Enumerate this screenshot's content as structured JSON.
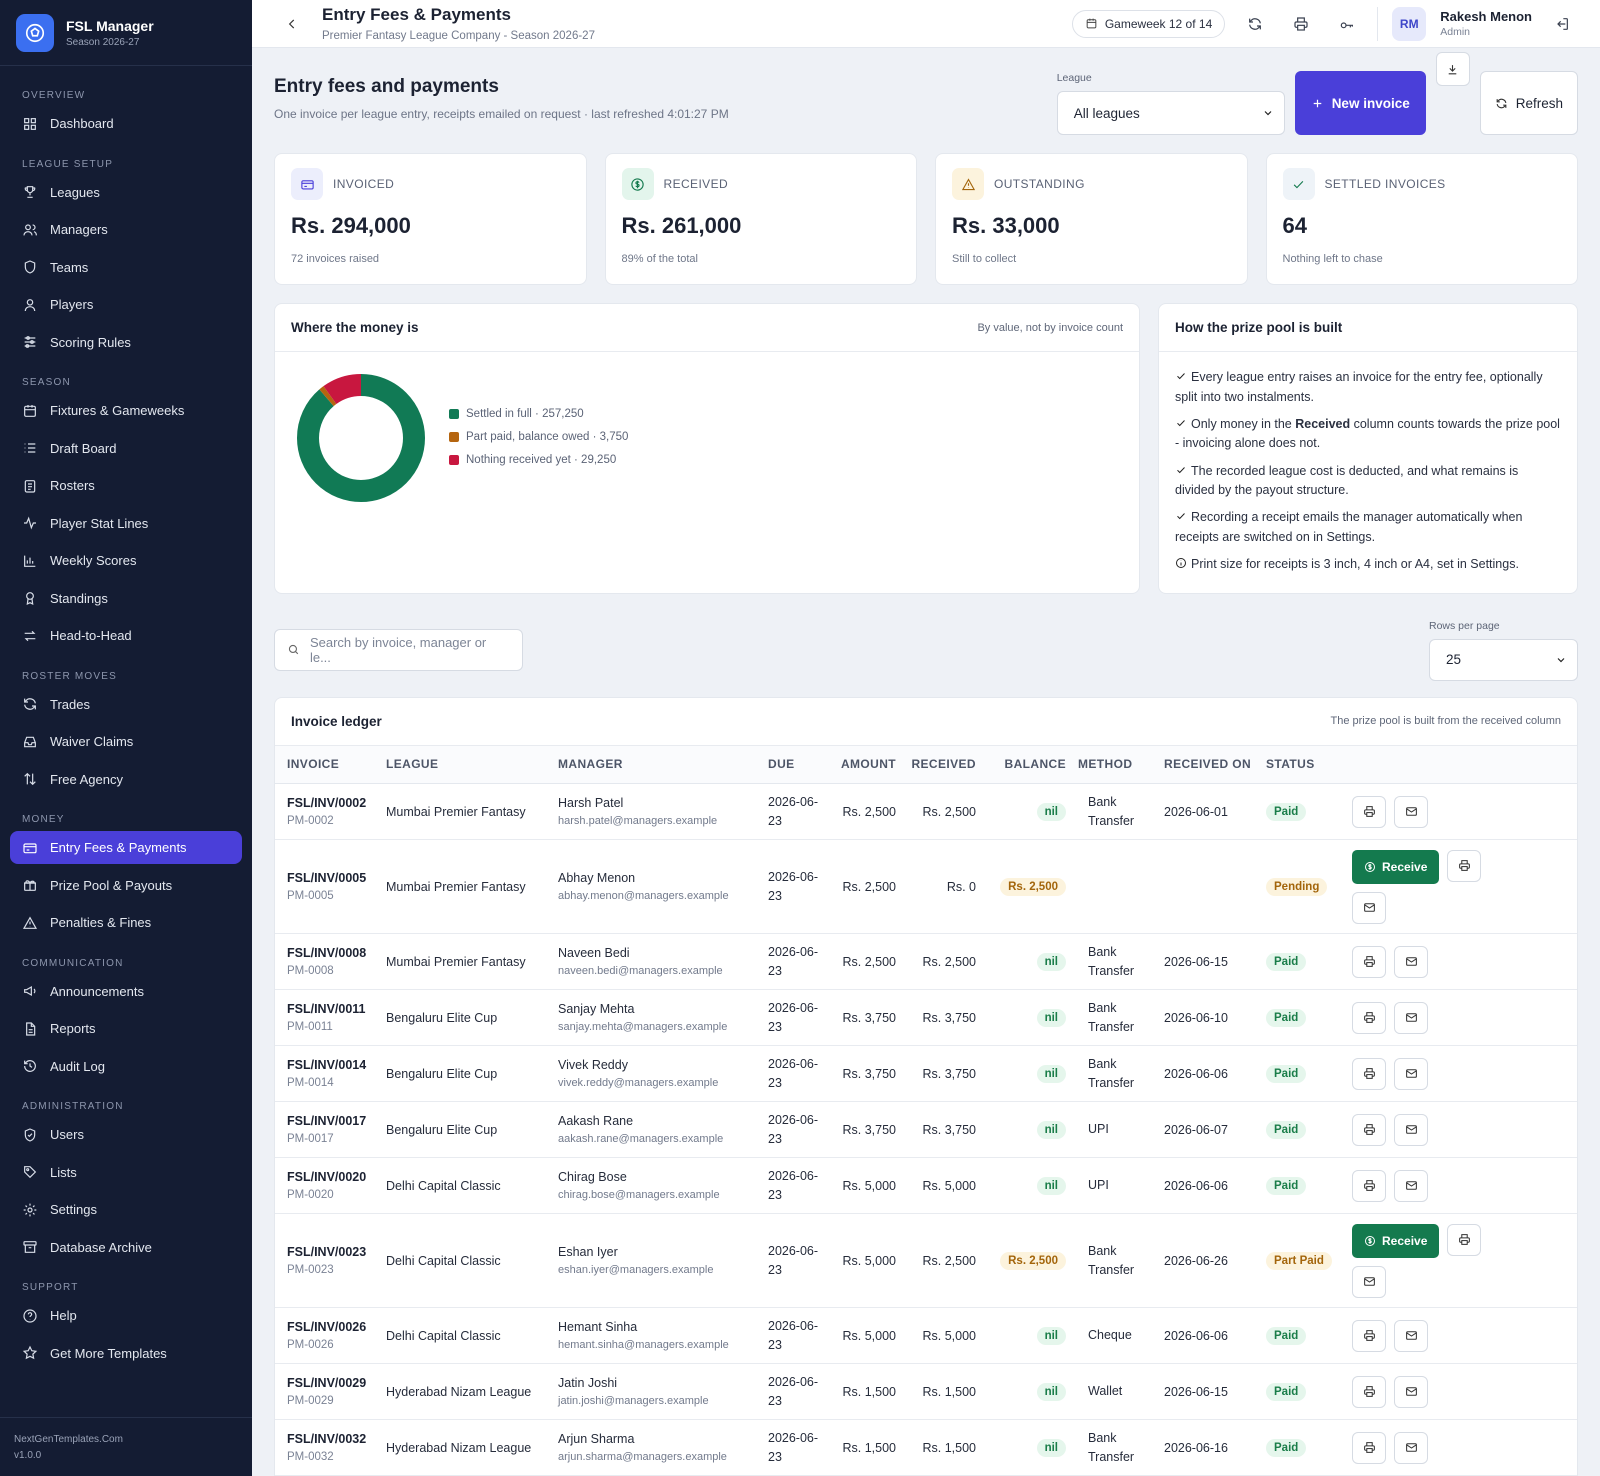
{
  "brand": {
    "title": "FSL Manager",
    "subtitle": "Season 2026-27"
  },
  "nav": [
    {
      "section": "OVERVIEW",
      "items": [
        {
          "label": "Dashboard",
          "icon": "dashboard-icon"
        }
      ]
    },
    {
      "section": "LEAGUE SETUP",
      "items": [
        {
          "label": "Leagues",
          "icon": "trophy-icon"
        },
        {
          "label": "Managers",
          "icon": "users-icon"
        },
        {
          "label": "Teams",
          "icon": "shield-icon"
        },
        {
          "label": "Players",
          "icon": "user-icon"
        },
        {
          "label": "Scoring Rules",
          "icon": "sliders-icon"
        }
      ]
    },
    {
      "section": "SEASON",
      "items": [
        {
          "label": "Fixtures & Gameweeks",
          "icon": "calendar-icon"
        },
        {
          "label": "Draft Board",
          "icon": "list-icon"
        },
        {
          "label": "Rosters",
          "icon": "clipboard-icon"
        },
        {
          "label": "Player Stat Lines",
          "icon": "activity-icon"
        },
        {
          "label": "Weekly Scores",
          "icon": "bar-chart-icon"
        },
        {
          "label": "Standings",
          "icon": "award-icon"
        },
        {
          "label": "Head-to-Head",
          "icon": "swap-icon"
        }
      ]
    },
    {
      "section": "ROSTER MOVES",
      "items": [
        {
          "label": "Trades",
          "icon": "refresh-icon"
        },
        {
          "label": "Waiver Claims",
          "icon": "inbox-icon"
        },
        {
          "label": "Free Agency",
          "icon": "arrows-updown-icon"
        }
      ]
    },
    {
      "section": "MONEY",
      "items": [
        {
          "label": "Entry Fees & Payments",
          "icon": "credit-card-icon",
          "active": true
        },
        {
          "label": "Prize Pool & Payouts",
          "icon": "gift-icon"
        },
        {
          "label": "Penalties & Fines",
          "icon": "warning-icon"
        }
      ]
    },
    {
      "section": "COMMUNICATION",
      "items": [
        {
          "label": "Announcements",
          "icon": "megaphone-icon"
        },
        {
          "label": "Reports",
          "icon": "file-icon"
        },
        {
          "label": "Audit Log",
          "icon": "history-icon"
        }
      ]
    },
    {
      "section": "ADMINISTRATION",
      "items": [
        {
          "label": "Users",
          "icon": "shield-check-icon"
        },
        {
          "label": "Lists",
          "icon": "tag-icon"
        },
        {
          "label": "Settings",
          "icon": "gear-icon"
        },
        {
          "label": "Database Archive",
          "icon": "archive-icon"
        }
      ]
    },
    {
      "section": "SUPPORT",
      "items": [
        {
          "label": "Help",
          "icon": "help-icon"
        },
        {
          "label": "Get More Templates",
          "icon": "star-icon"
        }
      ]
    }
  ],
  "footer": {
    "site": "NextGenTemplates.Com",
    "version": "v1.0.0"
  },
  "topbar": {
    "title": "Entry Fees & Payments",
    "subtitle": "Premier Fantasy League Company - Season 2026-27",
    "gameweek": "Gameweek 12 of 14",
    "user_initials": "RM",
    "user_name": "Rakesh Menon",
    "user_role": "Admin"
  },
  "page": {
    "title": "Entry fees and payments",
    "subtitle": "One invoice per league entry, receipts emailed on request · last refreshed 4:01:27 PM",
    "league_label": "League",
    "league_value": "All leagues",
    "new_invoice": "New invoice",
    "refresh": "Refresh"
  },
  "stats": [
    {
      "label": "INVOICED",
      "value": "Rs. 294,000",
      "note": "72 invoices raised",
      "icon": "credit-card-icon",
      "color": "#4a3fd9",
      "bg": "#eceefc"
    },
    {
      "label": "RECEIVED",
      "value": "Rs. 261,000",
      "note": "89% of the total",
      "icon": "dollar-circle-icon",
      "color": "#147a4e",
      "bg": "#e3f5ec"
    },
    {
      "label": "OUTSTANDING",
      "value": "Rs. 33,000",
      "note": "Still to collect",
      "icon": "warning-icon",
      "color": "#a3650b",
      "bg": "#fcf3dd"
    },
    {
      "label": "SETTLED INVOICES",
      "value": "64",
      "note": "Nothing left to chase",
      "icon": "check-icon",
      "color": "#147a4e",
      "bg": "#eef3f8"
    }
  ],
  "money_panel": {
    "title": "Where the money is",
    "note": "By value, not by invoice count"
  },
  "chart_data": {
    "type": "pie",
    "categories": [
      "Settled in full",
      "Part paid, balance owed",
      "Nothing received yet"
    ],
    "values": [
      257250,
      3750,
      29250
    ],
    "labels": [
      "Settled in full · 257,250",
      "Part paid, balance owed · 3,750",
      "Nothing received yet · 29,250"
    ],
    "colors": [
      "#117a55",
      "#b5650f",
      "#c8173f"
    ]
  },
  "pool_panel": {
    "title": "How the prize pool is built",
    "items": [
      {
        "icon": "check-icon",
        "pre": "Every league entry raises an invoice for the entry fee, optionally split into two instalments.",
        "bold": "",
        "post": ""
      },
      {
        "icon": "check-icon",
        "pre": "Only money in the ",
        "bold": "Received",
        "post": " column counts towards the prize pool - invoicing alone does not."
      },
      {
        "icon": "check-icon",
        "pre": "The recorded league cost is deducted, and what remains is divided by the payout structure.",
        "bold": "",
        "post": ""
      },
      {
        "icon": "check-icon",
        "pre": "Recording a receipt emails the manager automatically when receipts are switched on in Settings.",
        "bold": "",
        "post": ""
      },
      {
        "icon": "info-icon",
        "pre": "Print size for receipts is 3 inch, 4 inch or A4, set in Settings.",
        "bold": "",
        "post": ""
      }
    ]
  },
  "search": {
    "placeholder": "Search by invoice, manager or le..."
  },
  "rows_per_page": {
    "label": "Rows per page",
    "value": "25"
  },
  "ledger": {
    "title": "Invoice ledger",
    "note": "The prize pool is built from the received column",
    "columns": [
      "INVOICE",
      "LEAGUE",
      "MANAGER",
      "DUE",
      "AMOUNT",
      "RECEIVED",
      "BALANCE",
      "METHOD",
      "RECEIVED ON",
      "STATUS",
      ""
    ],
    "receive_label": "Receive",
    "rows": [
      {
        "inv": "FSL/INV/0002",
        "ref": "PM-0002",
        "league": "Mumbai Premier Fantasy",
        "mgr": "Harsh Patel",
        "email": "harsh.patel@managers.example",
        "due": "2026-06-23",
        "amount": "Rs. 2,500",
        "received": "Rs. 2,500",
        "balance": "nil",
        "method": "Bank Transfer",
        "on": "2026-06-01",
        "status": "Paid"
      },
      {
        "inv": "FSL/INV/0005",
        "ref": "PM-0005",
        "league": "Mumbai Premier Fantasy",
        "mgr": "Abhay Menon",
        "email": "abhay.menon@managers.example",
        "due": "2026-06-23",
        "amount": "Rs. 2,500",
        "received": "Rs. 0",
        "balance": "Rs. 2,500",
        "method": "",
        "on": "",
        "status": "Pending"
      },
      {
        "inv": "FSL/INV/0008",
        "ref": "PM-0008",
        "league": "Mumbai Premier Fantasy",
        "mgr": "Naveen Bedi",
        "email": "naveen.bedi@managers.example",
        "due": "2026-06-23",
        "amount": "Rs. 2,500",
        "received": "Rs. 2,500",
        "balance": "nil",
        "method": "Bank Transfer",
        "on": "2026-06-15",
        "status": "Paid"
      },
      {
        "inv": "FSL/INV/0011",
        "ref": "PM-0011",
        "league": "Bengaluru Elite Cup",
        "mgr": "Sanjay Mehta",
        "email": "sanjay.mehta@managers.example",
        "due": "2026-06-23",
        "amount": "Rs. 3,750",
        "received": "Rs. 3,750",
        "balance": "nil",
        "method": "Bank Transfer",
        "on": "2026-06-10",
        "status": "Paid"
      },
      {
        "inv": "FSL/INV/0014",
        "ref": "PM-0014",
        "league": "Bengaluru Elite Cup",
        "mgr": "Vivek Reddy",
        "email": "vivek.reddy@managers.example",
        "due": "2026-06-23",
        "amount": "Rs. 3,750",
        "received": "Rs. 3,750",
        "balance": "nil",
        "method": "Bank Transfer",
        "on": "2026-06-06",
        "status": "Paid"
      },
      {
        "inv": "FSL/INV/0017",
        "ref": "PM-0017",
        "league": "Bengaluru Elite Cup",
        "mgr": "Aakash Rane",
        "email": "aakash.rane@managers.example",
        "due": "2026-06-23",
        "amount": "Rs. 3,750",
        "received": "Rs. 3,750",
        "balance": "nil",
        "method": "UPI",
        "on": "2026-06-07",
        "status": "Paid"
      },
      {
        "inv": "FSL/INV/0020",
        "ref": "PM-0020",
        "league": "Delhi Capital Classic",
        "mgr": "Chirag Bose",
        "email": "chirag.bose@managers.example",
        "due": "2026-06-23",
        "amount": "Rs. 5,000",
        "received": "Rs. 5,000",
        "balance": "nil",
        "method": "UPI",
        "on": "2026-06-06",
        "status": "Paid"
      },
      {
        "inv": "FSL/INV/0023",
        "ref": "PM-0023",
        "league": "Delhi Capital Classic",
        "mgr": "Eshan Iyer",
        "email": "eshan.iyer@managers.example",
        "due": "2026-06-23",
        "amount": "Rs. 5,000",
        "received": "Rs. 2,500",
        "balance": "Rs. 2,500",
        "method": "Bank Transfer",
        "on": "2026-06-26",
        "status": "Part Paid"
      },
      {
        "inv": "FSL/INV/0026",
        "ref": "PM-0026",
        "league": "Delhi Capital Classic",
        "mgr": "Hemant Sinha",
        "email": "hemant.sinha@managers.example",
        "due": "2026-06-23",
        "amount": "Rs. 5,000",
        "received": "Rs. 5,000",
        "balance": "nil",
        "method": "Cheque",
        "on": "2026-06-06",
        "status": "Paid"
      },
      {
        "inv": "FSL/INV/0029",
        "ref": "PM-0029",
        "league": "Hyderabad Nizam League",
        "mgr": "Jatin Joshi",
        "email": "jatin.joshi@managers.example",
        "due": "2026-06-23",
        "amount": "Rs. 1,500",
        "received": "Rs. 1,500",
        "balance": "nil",
        "method": "Wallet",
        "on": "2026-06-15",
        "status": "Paid"
      },
      {
        "inv": "FSL/INV/0032",
        "ref": "PM-0032",
        "league": "Hyderabad Nizam League",
        "mgr": "Arjun Sharma",
        "email": "arjun.sharma@managers.example",
        "due": "2026-06-23",
        "amount": "Rs. 1,500",
        "received": "Rs. 1,500",
        "balance": "nil",
        "method": "Bank Transfer",
        "on": "2026-06-16",
        "status": "Paid"
      }
    ]
  }
}
